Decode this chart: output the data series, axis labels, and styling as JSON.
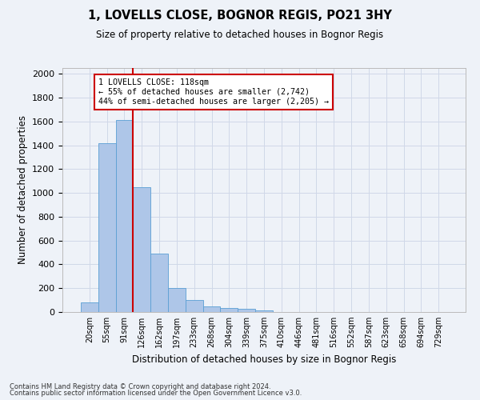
{
  "title": "1, LOVELLS CLOSE, BOGNOR REGIS, PO21 3HY",
  "subtitle": "Size of property relative to detached houses in Bognor Regis",
  "xlabel": "Distribution of detached houses by size in Bognor Regis",
  "ylabel": "Number of detached properties",
  "bar_labels": [
    "20sqm",
    "55sqm",
    "91sqm",
    "126sqm",
    "162sqm",
    "197sqm",
    "233sqm",
    "268sqm",
    "304sqm",
    "339sqm",
    "375sqm",
    "410sqm",
    "446sqm",
    "481sqm",
    "516sqm",
    "552sqm",
    "587sqm",
    "623sqm",
    "658sqm",
    "694sqm",
    "729sqm"
  ],
  "bar_values": [
    80,
    1420,
    1610,
    1050,
    490,
    205,
    100,
    45,
    35,
    25,
    15,
    0,
    0,
    0,
    0,
    0,
    0,
    0,
    0,
    0,
    0
  ],
  "bar_color": "#aec6e8",
  "bar_edge_color": "#5a9fd4",
  "property_line_x": 3,
  "annotation_text": "1 LOVELLS CLOSE: 118sqm\n← 55% of detached houses are smaller (2,742)\n44% of semi-detached houses are larger (2,205) →",
  "annotation_box_color": "#ffffff",
  "annotation_box_edge_color": "#cc0000",
  "vline_color": "#cc0000",
  "ylim": [
    0,
    2050
  ],
  "yticks": [
    0,
    200,
    400,
    600,
    800,
    1000,
    1200,
    1400,
    1600,
    1800,
    2000
  ],
  "grid_color": "#d0d8e8",
  "background_color": "#eef2f8",
  "footer_line1": "Contains HM Land Registry data © Crown copyright and database right 2024.",
  "footer_line2": "Contains public sector information licensed under the Open Government Licence v3.0."
}
